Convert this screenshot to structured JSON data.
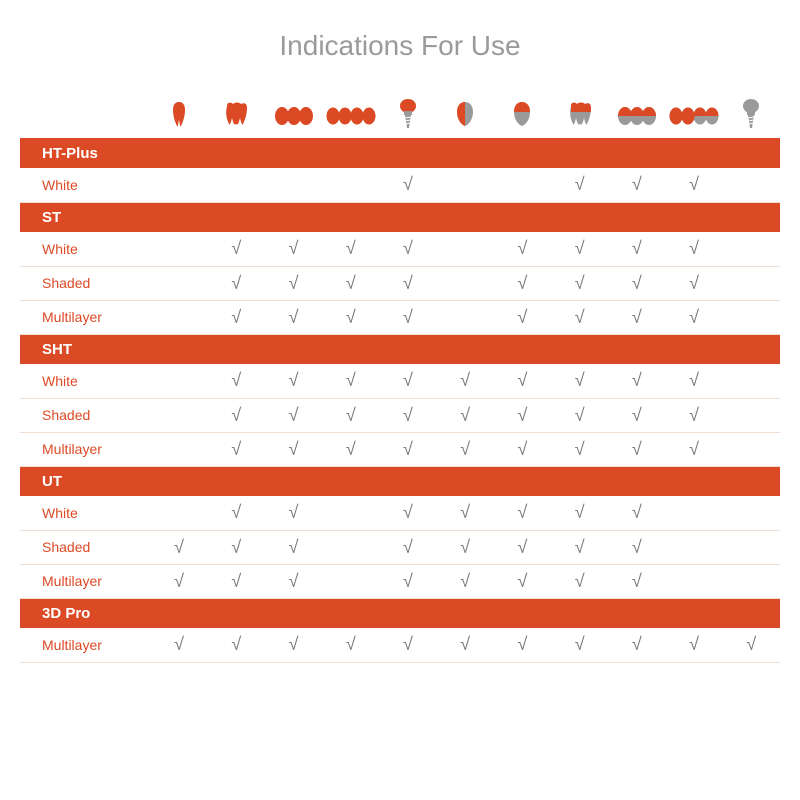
{
  "title": "Indications For Use",
  "colors": {
    "accent": "#dc4a25",
    "header_text": "#ffffff",
    "row_label": "#dc4a25",
    "check_mark": "#7a7a7a",
    "row_border": "#f3dcd4",
    "title": "#9a9a9a",
    "icon_red": "#dc4a25",
    "icon_gray": "#9a9a9a",
    "background": "#ffffff"
  },
  "typography": {
    "title_fontsize": 28,
    "section_header_fontsize": 15,
    "row_label_fontsize": 14,
    "check_fontsize": 18
  },
  "check_glyph": "√",
  "icons": [
    "single-tooth-red",
    "molar-red",
    "three-unit-red",
    "four-unit-red",
    "implant-red",
    "veneer-red",
    "crown-gray",
    "molar-gray",
    "three-unit-gray",
    "four-unit-half",
    "implant-gray"
  ],
  "sections": [
    {
      "name": "HT-Plus",
      "rows": [
        {
          "label": "White",
          "checks": [
            0,
            0,
            0,
            0,
            1,
            0,
            0,
            1,
            1,
            1,
            0
          ]
        }
      ]
    },
    {
      "name": "ST",
      "rows": [
        {
          "label": "White",
          "checks": [
            0,
            1,
            1,
            1,
            1,
            0,
            1,
            1,
            1,
            1,
            0
          ]
        },
        {
          "label": "Shaded",
          "checks": [
            0,
            1,
            1,
            1,
            1,
            0,
            1,
            1,
            1,
            1,
            0
          ]
        },
        {
          "label": "Multilayer",
          "checks": [
            0,
            1,
            1,
            1,
            1,
            0,
            1,
            1,
            1,
            1,
            0
          ]
        }
      ]
    },
    {
      "name": "SHT",
      "rows": [
        {
          "label": "White",
          "checks": [
            0,
            1,
            1,
            1,
            1,
            1,
            1,
            1,
            1,
            1,
            0
          ]
        },
        {
          "label": "Shaded",
          "checks": [
            0,
            1,
            1,
            1,
            1,
            1,
            1,
            1,
            1,
            1,
            0
          ]
        },
        {
          "label": "Multilayer",
          "checks": [
            0,
            1,
            1,
            1,
            1,
            1,
            1,
            1,
            1,
            1,
            0
          ]
        }
      ]
    },
    {
      "name": "UT",
      "rows": [
        {
          "label": "White",
          "checks": [
            0,
            1,
            1,
            0,
            1,
            1,
            1,
            1,
            1,
            0,
            0
          ]
        },
        {
          "label": "Shaded",
          "checks": [
            1,
            1,
            1,
            0,
            1,
            1,
            1,
            1,
            1,
            0,
            0
          ]
        },
        {
          "label": "Multilayer",
          "checks": [
            1,
            1,
            1,
            0,
            1,
            1,
            1,
            1,
            1,
            0,
            0
          ]
        }
      ]
    },
    {
      "name": "3D Pro",
      "rows": [
        {
          "label": "Multilayer",
          "checks": [
            1,
            1,
            1,
            1,
            1,
            1,
            1,
            1,
            1,
            1,
            1
          ]
        }
      ]
    }
  ]
}
